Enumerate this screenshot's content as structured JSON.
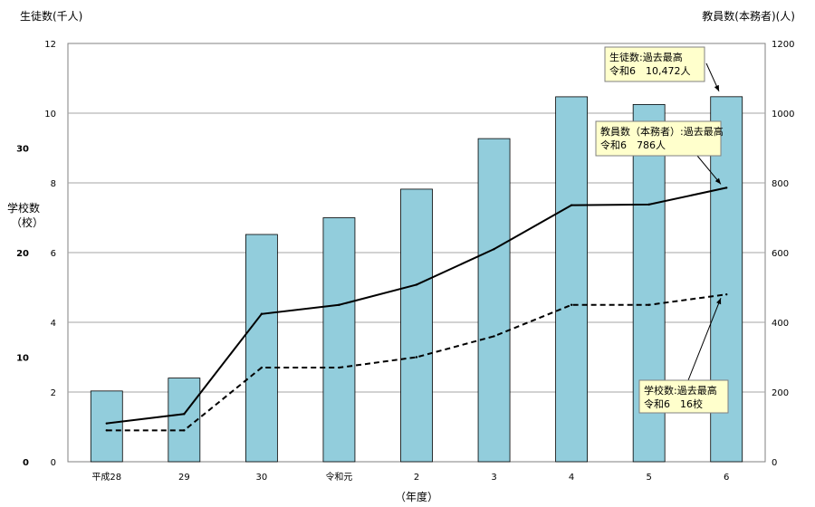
{
  "chart_data": {
    "type": "bar",
    "categories": [
      "平成28",
      "29",
      "30",
      "令和元",
      "2",
      "3",
      "4",
      "5",
      "6"
    ],
    "xlabel": "（年度）",
    "series": [
      {
        "name": "生徒数",
        "type": "bar",
        "axis": "left",
        "unit": "千人",
        "values": [
          2.03,
          2.4,
          6.52,
          7.0,
          7.82,
          9.27,
          10.47,
          10.25,
          10.472
        ]
      },
      {
        "name": "教員数（本務者）",
        "type": "line",
        "axis": "right",
        "unit": "人",
        "values": [
          110,
          137,
          424,
          450,
          508,
          610,
          736,
          738,
          786
        ]
      },
      {
        "name": "学校数",
        "type": "line-dashed",
        "axis": "school",
        "unit": "校",
        "values": [
          3,
          3,
          9,
          9,
          10,
          12,
          15,
          15,
          16
        ]
      }
    ],
    "axes": {
      "left": {
        "title": "生徒数(千人)",
        "range": [
          0,
          12
        ],
        "ticks": [
          "0",
          "2",
          "4",
          "6",
          "8",
          "10",
          "12"
        ]
      },
      "right": {
        "title": "教員数(本務者)(人)",
        "range": [
          0,
          1200
        ],
        "ticks": [
          "0",
          "200",
          "400",
          "600",
          "800",
          "1000",
          "1200"
        ]
      },
      "school": {
        "title_line1": "学校数",
        "title_line2": "（校）",
        "range": [
          0,
          40
        ],
        "ticks": [
          "0",
          "10",
          "20",
          "30"
        ]
      }
    },
    "annotations": [
      {
        "line1": "生徒数:過去最高",
        "line2": "令和6　10,472人"
      },
      {
        "line1": "教員数（本務者）:過去最高",
        "line2": "令和6　786人"
      },
      {
        "line1": "学校数:過去最高",
        "line2": "令和6　16校"
      }
    ],
    "grid": true
  }
}
